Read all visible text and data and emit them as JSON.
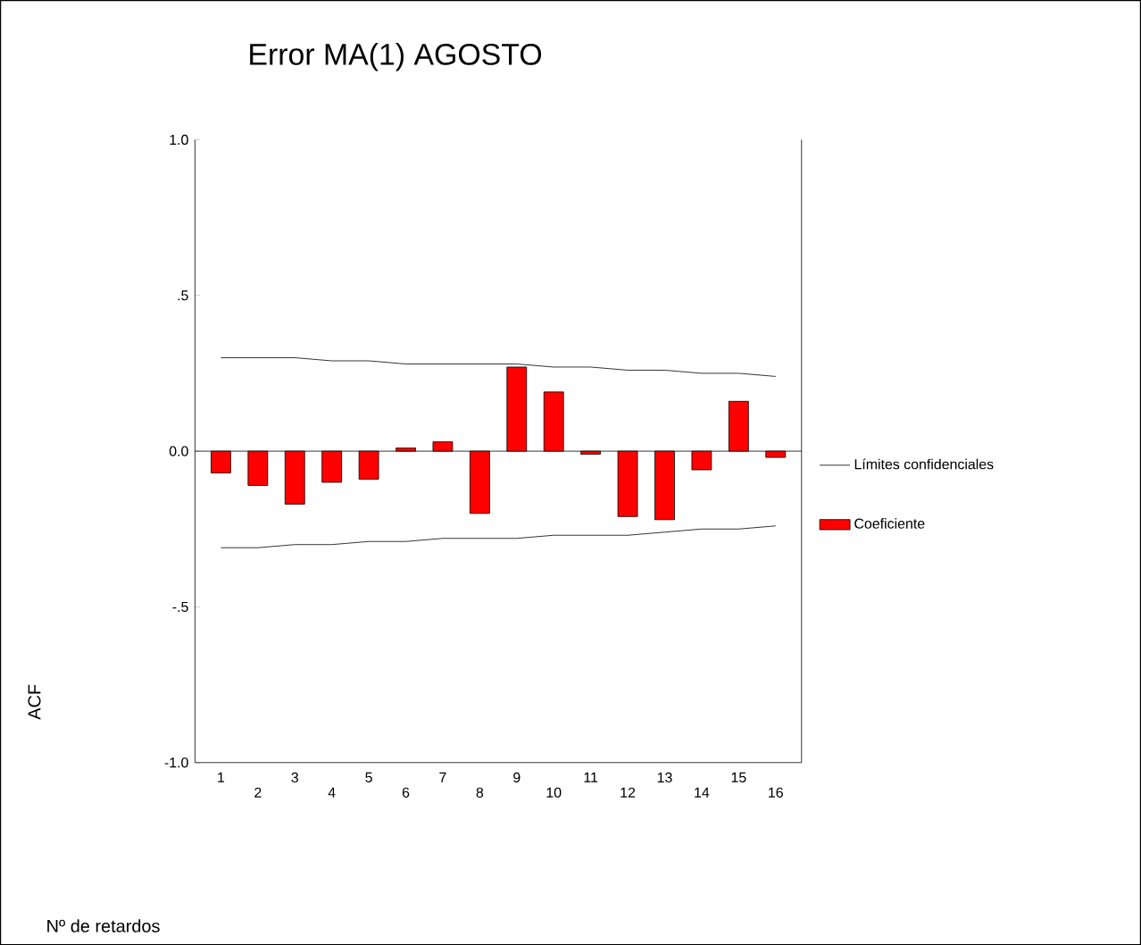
{
  "chart_data": {
    "type": "bar",
    "title": "Error MA(1) AGOSTO",
    "annotations": [
      "ACF",
      "Nº de retardos"
    ],
    "ref_lines": [
      {
        "axis": "y",
        "value": 0,
        "color": "#000000"
      }
    ],
    "categories": [
      "1",
      "2",
      "3",
      "4",
      "5",
      "6",
      "7",
      "8",
      "9",
      "10",
      "11",
      "12",
      "13",
      "14",
      "15",
      "16"
    ],
    "series": [
      {
        "name": "Coeficiente",
        "color": "#ff0000",
        "values": [
          -0.07,
          -0.11,
          -0.17,
          -0.1,
          -0.09,
          0.01,
          0.03,
          -0.2,
          0.27,
          0.19,
          -0.01,
          -0.21,
          -0.22,
          -0.06,
          0.16,
          -0.02
        ]
      },
      {
        "name": "Límites confidenciales",
        "type": "line",
        "color": "#000000",
        "values": [
          0.3,
          0.3,
          0.3,
          0.29,
          0.29,
          0.28,
          0.28,
          0.28,
          0.28,
          0.27,
          0.27,
          0.26,
          0.26,
          0.25,
          0.25,
          0.24
        ]
      },
      {
        "type": "line",
        "color": "#000000",
        "values": [
          -0.31,
          -0.31,
          -0.3,
          -0.3,
          -0.29,
          -0.29,
          -0.28,
          -0.28,
          -0.28,
          -0.27,
          -0.27,
          -0.27,
          -0.26,
          -0.25,
          -0.25,
          -0.24
        ]
      }
    ],
    "ylim": [
      -1.0,
      1.0
    ],
    "yticks": [
      {
        "value": -1.0,
        "label": "-1.0"
      },
      {
        "value": -0.5,
        "label": "-.5"
      },
      {
        "value": 0,
        "label": "0.0"
      },
      {
        "value": 0.5,
        "label": ".5"
      },
      {
        "value": 1.0,
        "label": "1.0"
      }
    ],
    "legend": "right",
    "grid": false,
    "marker": "none"
  }
}
